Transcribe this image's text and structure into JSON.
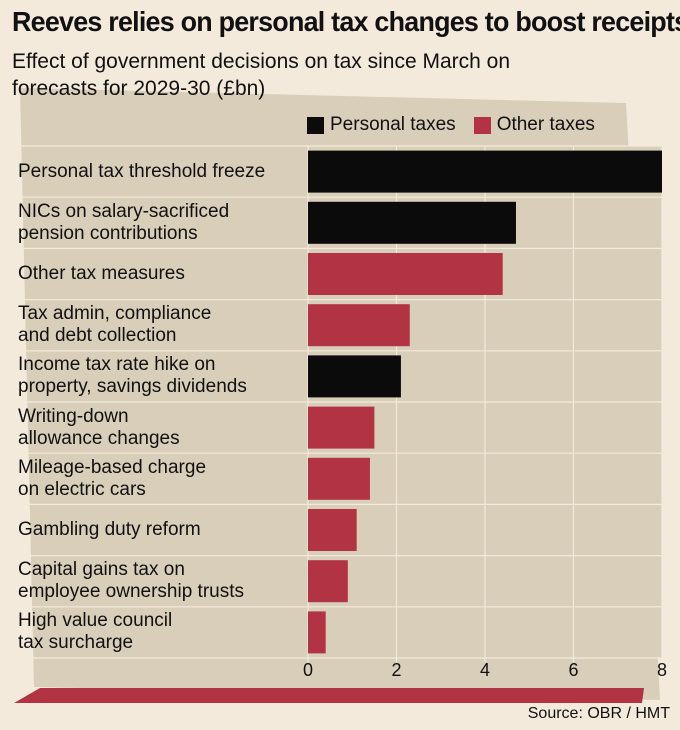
{
  "chart_data": {
    "type": "bar",
    "orientation": "horizontal",
    "title": "Reeves relies on personal tax changes to boost receipts",
    "subtitle": "Effect of government decisions on tax since March on forecasts for 2029-30 (£bn)",
    "legend": [
      {
        "name": "Personal taxes",
        "color": "#0b0b0b"
      },
      {
        "name": "Other taxes",
        "color": "#b23344"
      }
    ],
    "categories": [
      "Personal tax threshold freeze",
      "NICs on salary-sacrificed pension contributions",
      "Other tax measures",
      "Tax admin, compliance and debt collection",
      "Income tax rate hike on property, savings dividends",
      "Writing-down allowance changes",
      "Mileage-based charge on electric cars",
      "Gambling duty reform",
      "Capital gains tax on employee ownership trusts",
      "High value council tax surcharge"
    ],
    "category_lines": [
      [
        "Personal tax threshold freeze"
      ],
      [
        "NICs on salary-sacrificed",
        "pension contributions"
      ],
      [
        "Other tax measures"
      ],
      [
        "Tax admin, compliance",
        "and debt collection"
      ],
      [
        "Income tax rate hike on",
        "property, savings dividends"
      ],
      [
        "Writing-down",
        "allowance changes"
      ],
      [
        "Mileage-based charge",
        "on electric cars"
      ],
      [
        "Gambling duty reform"
      ],
      [
        "Capital gains tax on",
        "employee ownership trusts"
      ],
      [
        "High value council",
        "tax surcharge"
      ]
    ],
    "values": [
      8.0,
      4.7,
      4.4,
      2.3,
      2.1,
      1.5,
      1.4,
      1.1,
      0.9,
      0.4
    ],
    "groups": [
      "Personal taxes",
      "Personal taxes",
      "Other taxes",
      "Other taxes",
      "Personal taxes",
      "Other taxes",
      "Other taxes",
      "Other taxes",
      "Other taxes",
      "Other taxes"
    ],
    "xlim": [
      0,
      8
    ],
    "xticks": [
      0,
      2,
      4,
      6,
      8
    ],
    "grid": true,
    "xlabel": "",
    "ylabel": ""
  },
  "source": "Source: OBR / HMT",
  "colors": {
    "background": "#f3eadb",
    "panel": "#d9ceb9",
    "personal": "#0b0b0b",
    "other": "#b23344",
    "grid": "#f3eadb"
  }
}
